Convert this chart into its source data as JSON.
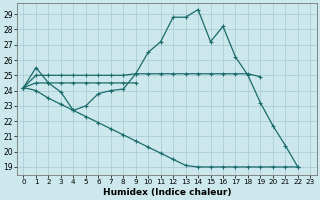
{
  "xlabel": "Humidex (Indice chaleur)",
  "background_color": "#cce8ec",
  "grid_color": "#aacdd4",
  "line_color": "#1a6b6b",
  "xlim": [
    -0.5,
    23.5
  ],
  "ylim": [
    18.5,
    29.7
  ],
  "yticks": [
    19,
    20,
    21,
    22,
    23,
    24,
    25,
    26,
    27,
    28,
    29
  ],
  "xticks": [
    0,
    1,
    2,
    3,
    4,
    5,
    6,
    7,
    8,
    9,
    10,
    11,
    12,
    13,
    14,
    15,
    16,
    17,
    18,
    19,
    20,
    21,
    22,
    23
  ],
  "s1_x": [
    0,
    1,
    2,
    3,
    4,
    5,
    6,
    7,
    8,
    9,
    10,
    11,
    12,
    13,
    14,
    15,
    16,
    17,
    18,
    19,
    20,
    21,
    22
  ],
  "s1_y": [
    24.2,
    25.5,
    24.5,
    23.9,
    22.7,
    23.0,
    23.8,
    24.0,
    24.1,
    25.1,
    26.5,
    27.2,
    28.8,
    28.8,
    29.3,
    27.2,
    28.2,
    26.2,
    25.0,
    23.2,
    21.7,
    20.4,
    19.0
  ],
  "s2_x": [
    0,
    1,
    2,
    3,
    4,
    5,
    6,
    7,
    8,
    9,
    10,
    11,
    12,
    13,
    14,
    15,
    16,
    17,
    18,
    19
  ],
  "s2_y": [
    24.2,
    25.0,
    25.0,
    25.0,
    25.0,
    25.0,
    25.0,
    25.0,
    25.0,
    25.1,
    25.1,
    25.1,
    25.1,
    25.1,
    25.1,
    25.1,
    25.1,
    25.1,
    25.1,
    24.9
  ],
  "s3_x": [
    0,
    1,
    2,
    3,
    4,
    5,
    6,
    7,
    8,
    9
  ],
  "s3_y": [
    24.2,
    24.5,
    24.5,
    24.5,
    24.5,
    24.5,
    24.5,
    24.5,
    24.5,
    24.5
  ],
  "s4_x": [
    0,
    1,
    2,
    3,
    4,
    5,
    6,
    7,
    8,
    9,
    10,
    11,
    12,
    13,
    14,
    15,
    16,
    17,
    18,
    19,
    20,
    21,
    22
  ],
  "s4_y": [
    24.2,
    24.0,
    23.5,
    23.1,
    22.7,
    22.3,
    21.9,
    21.5,
    21.1,
    20.7,
    20.3,
    19.9,
    19.5,
    19.1,
    19.0,
    19.0,
    19.0,
    19.0,
    19.0,
    19.0,
    19.0,
    19.0,
    19.0
  ],
  "markersize": 3.5
}
